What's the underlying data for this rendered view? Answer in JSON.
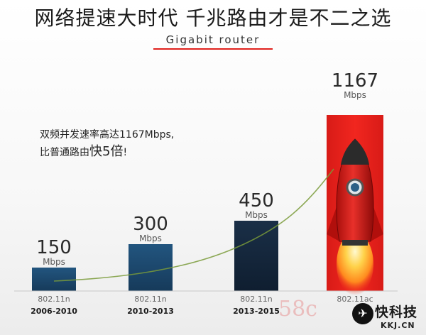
{
  "header": {
    "title": "网络提速大时代 千兆路由才是不二之选",
    "subtitle": "Gigabit router"
  },
  "claim": {
    "line1": "双频并发速率高达1167Mbps,",
    "line2_pre": "比普通路由",
    "line2_em": "快5倍",
    "line2_post": "!"
  },
  "chart_data": {
    "type": "bar",
    "title": "网络提速大时代 千兆路由才是不二之选",
    "subtitle": "Gigabit router",
    "unit": "Mbps",
    "categories": [
      "802.11n 2006-2010",
      "802.11n 2010-2013",
      "802.11n 2013-2015",
      "802.11ac 2015-"
    ],
    "standards": [
      "802.11n",
      "802.11n",
      "802.11n",
      "802.11ac"
    ],
    "periods": [
      "2006-2010",
      "2010-2013",
      "2013-2015",
      ""
    ],
    "values": [
      150,
      300,
      450,
      1167
    ],
    "ylim": [
      0,
      1200
    ],
    "grid": false,
    "legend": "none",
    "colors": {
      "bar": "#1d4a70",
      "last_bar": "#e8211c",
      "curve": "#7a9b3a"
    }
  },
  "watermark": {
    "text": "58c"
  },
  "brand": {
    "icon_glyph": "✈",
    "name": "快科技",
    "domain": "KKJ.CN"
  }
}
